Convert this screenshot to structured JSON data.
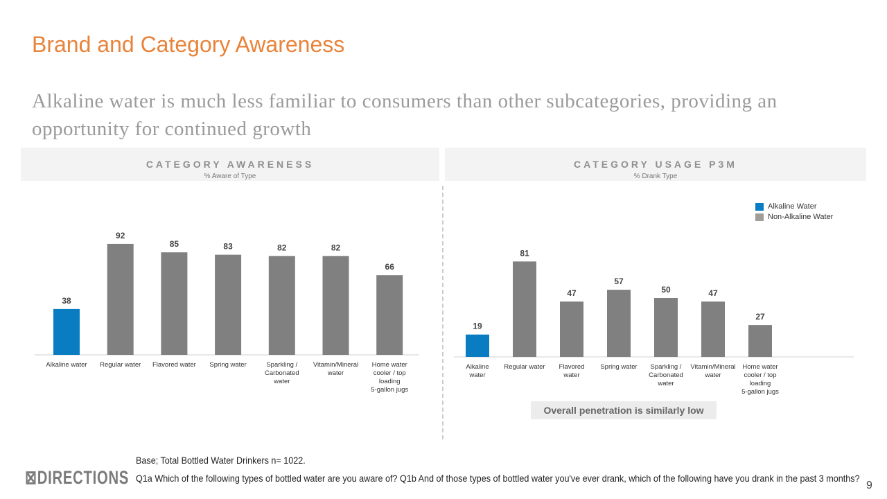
{
  "title": "Brand and Category Awareness",
  "subtitle": "Alkaline water is much less familiar to consumers than other subcategories, providing an opportunity for continued growth",
  "colors": {
    "alkaline": "#0A7DC2",
    "non_alkaline": "#808080",
    "title": "#E8833A"
  },
  "chart_data": [
    {
      "type": "bar",
      "title": "CATEGORY AWARENESS",
      "subtitle": "% Aware of Type",
      "categories": [
        "Alkaline water",
        "Regular water",
        "Flavored water",
        "Spring water",
        "Sparkling / Carbonated water",
        "Vitamin/Mineral water",
        "Home water cooler / top loading 5-gallon jugs"
      ],
      "values": [
        38,
        92,
        85,
        83,
        82,
        82,
        66
      ],
      "ylim": [
        0,
        100
      ],
      "grid": false
    },
    {
      "type": "bar",
      "title": "CATEGORY USAGE P3M",
      "subtitle": "% Drank Type",
      "categories": [
        "Alkaline water",
        "Regular water",
        "Flavored water",
        "Spring water",
        "Sparkling / Carbonated water",
        "Vitamin/Mineral water",
        "Home water cooler / top loading 5-gallon jugs"
      ],
      "values": [
        19,
        81,
        47,
        57,
        50,
        47,
        27
      ],
      "ylim": [
        0,
        100
      ],
      "grid": false,
      "legend": {
        "position": "top-right",
        "entries": [
          "Alkaline Water",
          "Non-Alkaline Water"
        ]
      },
      "annotation": "Overall penetration is similarly low"
    }
  ],
  "footer": {
    "logo": "DIRECTIONS",
    "base": "Base; Total Bottled Water Drinkers n= 1022.",
    "question": "Q1a Which of the following types of bottled water are you aware of? Q1b And of those types of bottled water you've ever drank, which of the following have you drank in the past 3 months?",
    "page": "9"
  }
}
